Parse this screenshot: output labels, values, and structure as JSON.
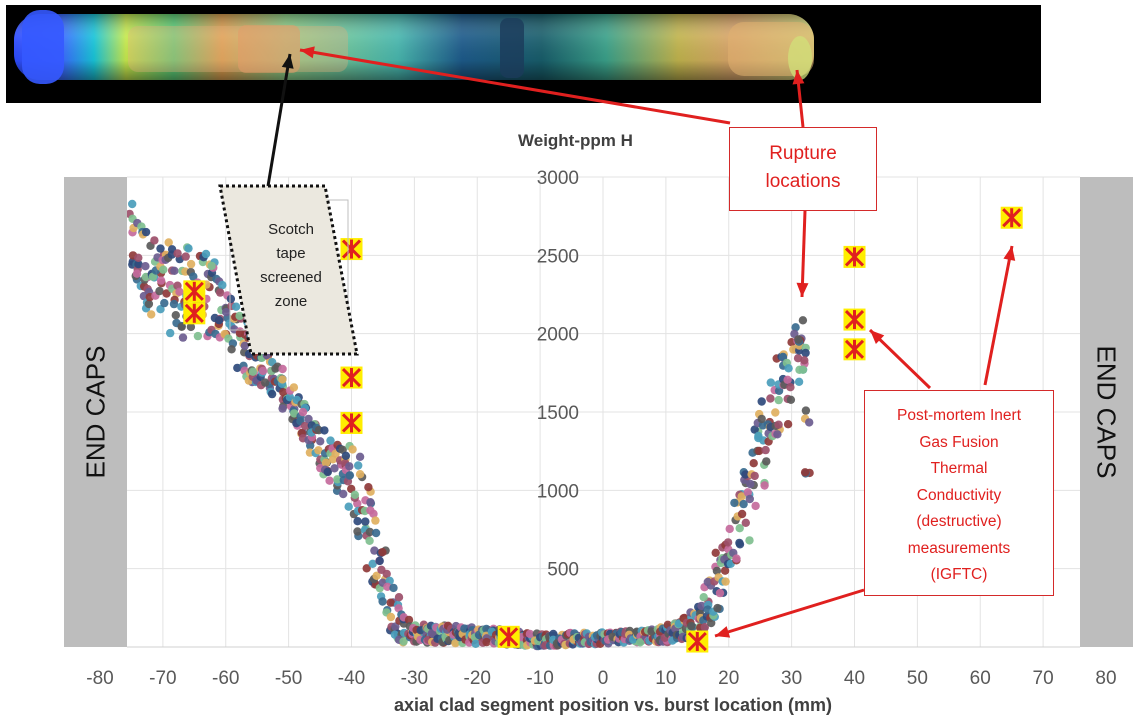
{
  "chart_data": {
    "type": "scatter",
    "title": "",
    "ylabel": "Weight-ppm H",
    "xlabel": "axial clad segment position vs. burst location (mm)",
    "xlim": [
      -80,
      80
    ],
    "ylim": [
      0,
      3000
    ],
    "xticks": [
      "-80",
      "-70",
      "-60",
      "-50",
      "-40",
      "-30",
      "-20",
      "-10",
      "0",
      "10",
      "20",
      "30",
      "40",
      "50",
      "60",
      "70",
      "80"
    ],
    "yticks": [
      "500",
      "1000",
      "1500",
      "2000",
      "2500",
      "3000"
    ],
    "grid": true,
    "legend": "none",
    "series": [
      {
        "marker": "dot",
        "profile": [
          [
            -75,
            2550,
            280
          ],
          [
            -72,
            2380,
            260
          ],
          [
            -70,
            2300,
            280
          ],
          [
            -68,
            2290,
            300
          ],
          [
            -66,
            2260,
            300
          ],
          [
            -64,
            2250,
            280
          ],
          [
            -62,
            2220,
            260
          ],
          [
            -60,
            2120,
            160
          ],
          [
            -58,
            1980,
            200
          ],
          [
            -56,
            1850,
            180
          ],
          [
            -54,
            1780,
            120
          ],
          [
            -52,
            1700,
            120
          ],
          [
            -50,
            1600,
            110
          ],
          [
            -48,
            1480,
            120
          ],
          [
            -46,
            1320,
            150
          ],
          [
            -44,
            1200,
            140
          ],
          [
            -42,
            1120,
            160
          ],
          [
            -40,
            1080,
            260
          ],
          [
            -38,
            880,
            300
          ],
          [
            -36,
            600,
            300
          ],
          [
            -34,
            300,
            220
          ],
          [
            -32,
            150,
            120
          ],
          [
            -30,
            90,
            60
          ],
          [
            -25,
            80,
            60
          ],
          [
            -20,
            75,
            55
          ],
          [
            -15,
            60,
            50
          ],
          [
            -10,
            45,
            40
          ],
          [
            -5,
            50,
            40
          ],
          [
            0,
            60,
            40
          ],
          [
            5,
            70,
            40
          ],
          [
            10,
            80,
            50
          ],
          [
            13,
            120,
            70
          ],
          [
            15,
            170,
            100
          ],
          [
            17,
            300,
            160
          ],
          [
            19,
            480,
            200
          ],
          [
            21,
            700,
            250
          ],
          [
            23,
            950,
            300
          ],
          [
            25,
            1250,
            320
          ],
          [
            27,
            1500,
            300
          ],
          [
            29,
            1650,
            280
          ],
          [
            31,
            1850,
            280
          ],
          [
            32,
            1950,
            220
          ],
          [
            33,
            900,
            600
          ]
        ]
      },
      {
        "marker": "igftc",
        "points": [
          {
            "x": -65,
            "y": 2270
          },
          {
            "x": -65,
            "y": 2130
          },
          {
            "x": -40,
            "y": 2540
          },
          {
            "x": -40,
            "y": 1720
          },
          {
            "x": -40,
            "y": 1430
          },
          {
            "x": -15,
            "y": 65
          },
          {
            "x": 15,
            "y": 35
          },
          {
            "x": 40,
            "y": 2490
          },
          {
            "x": 40,
            "y": 2090
          },
          {
            "x": 40,
            "y": 1900
          },
          {
            "x": 65,
            "y": 2740
          }
        ]
      }
    ],
    "palette": [
      "#2f4a7c",
      "#8d4a1f",
      "#3a6b8f",
      "#7a7a2c",
      "#9c4f6a",
      "#4f8a5e",
      "#6b5c8f",
      "#b8b84a",
      "#4a9dbb",
      "#c4796a",
      "#5a5a5a",
      "#a0c4d8",
      "#7fbf8f",
      "#d49a6a",
      "#8f3a3a",
      "#3a3a6b",
      "#c46a9c",
      "#6ab0a0",
      "#e0b060",
      "#556b2f"
    ],
    "annotations": {
      "end_caps_left": "END CAPS",
      "end_caps_right": "END CAPS",
      "scotch_tape": [
        "Scotch",
        "tape",
        "screened",
        "zone"
      ],
      "rupture": [
        "Rupture",
        "locations"
      ],
      "igftc": [
        "Post-mortem Inert",
        "Gas Fusion",
        "Thermal",
        "Conductivity",
        "(destructive)",
        "measurements",
        "(IGFTC)"
      ]
    },
    "colors": {
      "annotation_red": "#e0201f",
      "marker_fill": "#ffee00",
      "end_caps": "#bdbdbd",
      "tomography_background": "#000000"
    }
  }
}
